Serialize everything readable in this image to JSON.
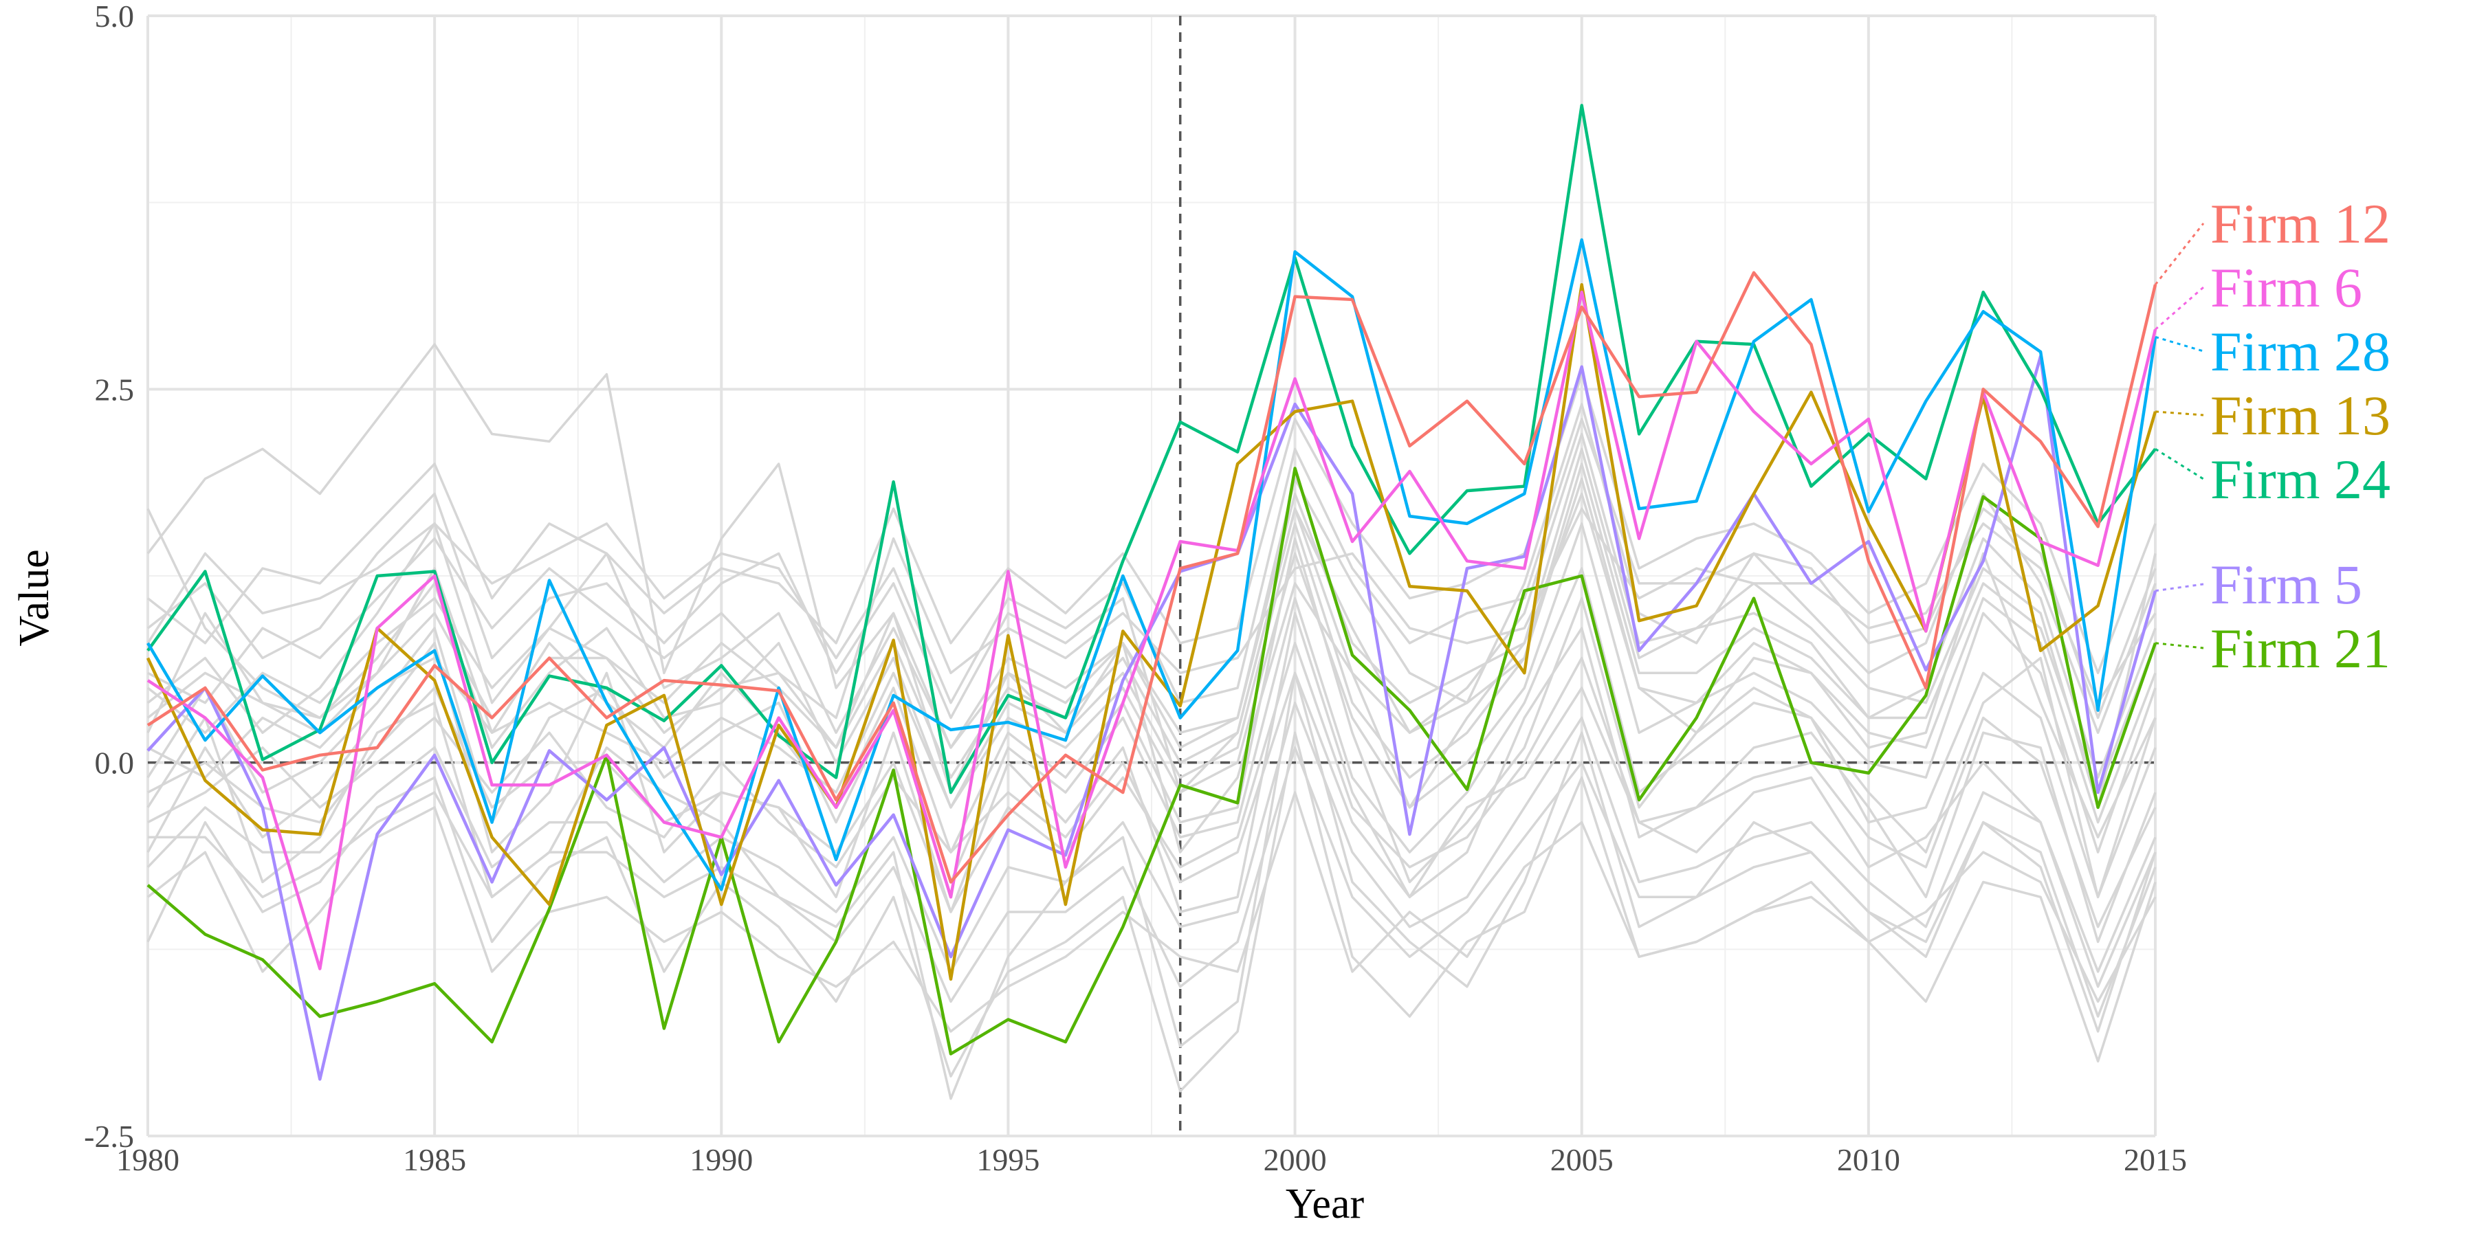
{
  "chart_data": {
    "type": "line",
    "title": "",
    "xlabel": "Year",
    "ylabel": "Value",
    "xlim": [
      1980,
      2015
    ],
    "ylim": [
      -2.5,
      5.0
    ],
    "x_ticks": [
      "1980",
      "1985",
      "1990",
      "1995",
      "2000",
      "2005",
      "2010",
      "2015"
    ],
    "y_ticks": [
      "-2.5",
      "0.0",
      "2.5",
      "5.0"
    ],
    "reference_lines": {
      "vertical_x": 1998,
      "horizontal_y": 0.0,
      "style": "dashed"
    },
    "grid": true,
    "legend": "direct labels on right",
    "years": [
      1980,
      1981,
      1982,
      1983,
      1984,
      1985,
      1986,
      1987,
      1988,
      1989,
      1990,
      1991,
      1992,
      1993,
      1994,
      1995,
      1996,
      1997,
      1998,
      1999,
      2000,
      2001,
      2002,
      2003,
      2004,
      2005,
      2006,
      2007,
      2008,
      2009,
      2010,
      2011,
      2012,
      2013,
      2014,
      2015
    ],
    "highlighted": [
      {
        "name": "Firm 12",
        "color": "#F8766D",
        "values": [
          0.25,
          0.5,
          -0.05,
          0.05,
          0.1,
          0.65,
          0.3,
          0.7,
          0.3,
          0.55,
          0.52,
          0.48,
          -0.25,
          0.4,
          -0.8,
          -0.35,
          0.05,
          -0.2,
          1.3,
          1.4,
          3.12,
          3.1,
          2.12,
          2.42,
          2.0,
          3.05,
          2.45,
          2.48,
          3.28,
          2.8,
          1.35,
          0.5,
          2.5,
          2.15,
          1.58,
          3.2
        ]
      },
      {
        "name": "Firm 6",
        "color": "#F564E3",
        "values": [
          0.55,
          0.3,
          -0.1,
          -1.38,
          0.9,
          1.25,
          -0.15,
          -0.15,
          0.05,
          -0.4,
          -0.5,
          0.3,
          -0.3,
          0.35,
          -0.9,
          1.28,
          -0.7,
          0.4,
          1.48,
          1.42,
          2.57,
          1.48,
          1.95,
          1.35,
          1.3,
          3.15,
          1.5,
          2.82,
          2.35,
          2.0,
          2.3,
          0.88,
          2.48,
          1.48,
          1.32,
          2.9
        ]
      },
      {
        "name": "Firm 28",
        "color": "#00B0F6",
        "values": [
          0.8,
          0.15,
          0.58,
          0.2,
          0.5,
          0.75,
          -0.4,
          1.22,
          0.4,
          -0.25,
          -0.85,
          0.5,
          -0.65,
          0.45,
          0.22,
          0.27,
          0.15,
          1.25,
          0.3,
          0.75,
          3.42,
          3.12,
          1.65,
          1.6,
          1.8,
          3.5,
          1.7,
          1.75,
          2.82,
          3.1,
          1.68,
          2.42,
          3.02,
          2.75,
          0.35,
          2.85
        ]
      },
      {
        "name": "Firm 13",
        "color": "#C49A00",
        "values": [
          0.7,
          -0.12,
          -0.45,
          -0.48,
          0.9,
          0.55,
          -0.5,
          -0.95,
          0.25,
          0.45,
          -0.95,
          0.25,
          -0.3,
          0.82,
          -1.45,
          0.85,
          -0.95,
          0.88,
          0.38,
          2.0,
          2.35,
          2.42,
          1.18,
          1.15,
          0.6,
          3.2,
          0.95,
          1.05,
          1.8,
          2.48,
          1.6,
          0.88,
          2.45,
          0.75,
          1.05,
          2.35
        ]
      },
      {
        "name": "Firm 24",
        "color": "#00BF7D",
        "values": [
          0.75,
          1.28,
          0.02,
          0.22,
          1.25,
          1.28,
          0.0,
          0.58,
          0.5,
          0.28,
          0.65,
          0.18,
          -0.1,
          1.88,
          -0.2,
          0.45,
          0.3,
          1.35,
          2.28,
          2.08,
          3.38,
          2.12,
          1.4,
          1.82,
          1.85,
          4.4,
          2.2,
          2.82,
          2.8,
          1.85,
          2.2,
          1.9,
          3.15,
          2.5,
          1.6,
          2.1
        ]
      },
      {
        "name": "Firm 5",
        "color": "#A58AFF",
        "values": [
          0.08,
          0.5,
          -0.3,
          -2.12,
          -0.48,
          0.05,
          -0.8,
          0.08,
          -0.25,
          0.1,
          -0.75,
          -0.12,
          -0.82,
          -0.35,
          -1.3,
          -0.45,
          -0.62,
          0.55,
          1.28,
          1.4,
          2.4,
          1.8,
          -0.48,
          1.3,
          1.38,
          2.65,
          0.75,
          1.2,
          1.8,
          1.2,
          1.48,
          0.62,
          1.35,
          2.72,
          -0.2,
          1.15
        ]
      },
      {
        "name": "Firm 21",
        "color": "#53B400",
        "values": [
          -0.82,
          -1.15,
          -1.32,
          -1.7,
          -1.6,
          -1.48,
          -1.87,
          -0.98,
          0.05,
          -1.78,
          -0.5,
          -1.87,
          -1.2,
          -0.05,
          -1.95,
          -1.72,
          -1.87,
          -1.1,
          -0.15,
          -0.27,
          1.97,
          0.72,
          0.35,
          -0.18,
          1.15,
          1.25,
          -0.25,
          0.3,
          1.1,
          0.0,
          -0.07,
          0.45,
          1.78,
          1.5,
          -0.3,
          0.8
        ]
      }
    ],
    "background_series": [
      [
        1.7,
        0.9,
        0.5,
        0.3,
        0.6,
        1.3,
        0.2,
        0.8,
        0.4,
        0.1,
        0.6,
        0.2,
        -0.3,
        0.5,
        -0.6,
        0.2,
        -0.1,
        0.4,
        -0.4,
        -0.3,
        1.5,
        0.2,
        -0.8,
        -0.4,
        0.1,
        1.1,
        -0.3,
        0.2,
        0.5,
        0.3,
        -0.2,
        -0.6,
        0.4,
        0.7,
        -0.9,
        0.1
      ],
      [
        1.4,
        1.9,
        2.1,
        1.8,
        2.3,
        2.8,
        2.2,
        2.15,
        2.6,
        0.6,
        1.5,
        2.0,
        0.5,
        1.0,
        -0.2,
        0.6,
        0.2,
        0.8,
        -0.6,
        -0.1,
        1.2,
        0.6,
        -0.3,
        0.3,
        0.8,
        1.8,
        0.5,
        0.2,
        0.7,
        0.6,
        0.1,
        0.2,
        1.4,
        0.4,
        -0.5,
        0.3
      ],
      [
        -0.3,
        0.3,
        -0.8,
        -0.5,
        0.2,
        0.4,
        -0.9,
        -0.6,
        0.1,
        -0.2,
        -0.4,
        -0.9,
        -1.1,
        -0.6,
        -2.25,
        -1.3,
        -0.8,
        -0.5,
        -1.9,
        -1.6,
        0.6,
        -0.8,
        -1.2,
        -1.5,
        -0.8,
        0.2,
        -1.1,
        -0.9,
        -0.4,
        -0.6,
        -1.0,
        -1.3,
        -0.4,
        -0.7,
        -1.8,
        -0.6
      ],
      [
        0.9,
        1.2,
        0.7,
        0.9,
        1.4,
        1.8,
        0.7,
        1.1,
        1.2,
        0.8,
        1.2,
        1.4,
        0.6,
        1.2,
        0.3,
        1.0,
        0.8,
        1.1,
        -0.2,
        0.2,
        1.7,
        0.9,
        0.2,
        0.5,
        1.0,
        2.2,
        0.8,
        0.9,
        1.2,
        0.9,
        0.5,
        0.4,
        1.3,
        1.0,
        -0.3,
        1.4
      ],
      [
        -1.2,
        -0.4,
        -1.0,
        -0.8,
        -0.3,
        -0.1,
        -1.2,
        -0.7,
        -0.5,
        -1.4,
        -0.8,
        -1.1,
        -1.6,
        -0.9,
        -2.1,
        -1.4,
        -1.2,
        -0.9,
        -2.2,
        -1.8,
        0.2,
        -1.3,
        -1.7,
        -1.2,
        -1.0,
        -0.1,
        -1.3,
        -1.2,
        -1.0,
        -0.9,
        -1.2,
        -1.6,
        -0.8,
        -0.9,
        -2.0,
        -0.8
      ],
      [
        0.4,
        0.7,
        0.2,
        0.5,
        1.0,
        1.6,
        0.4,
        0.9,
        1.4,
        0.5,
        0.7,
        1.0,
        0.2,
        0.9,
        0.1,
        0.7,
        0.5,
        0.8,
        0.2,
        0.3,
        1.9,
        1.2,
        0.6,
        0.4,
        1.2,
        2.4,
        1.0,
        0.8,
        1.4,
        1.0,
        0.6,
        0.8,
        1.8,
        1.2,
        0.2,
        1.2
      ],
      [
        -0.6,
        0.1,
        -0.5,
        -0.2,
        0.3,
        0.8,
        -0.6,
        -0.2,
        0.6,
        -0.6,
        -0.2,
        -0.3,
        -0.9,
        0.2,
        -1.0,
        0.0,
        -0.4,
        0.1,
        -1.0,
        -0.9,
        1.0,
        -0.2,
        -0.9,
        -0.6,
        0.3,
        0.9,
        -0.5,
        -0.3,
        0.1,
        0.2,
        -0.3,
        -0.9,
        0.2,
        0.1,
        -1.2,
        -0.2
      ],
      [
        0.2,
        1.0,
        0.4,
        0.3,
        0.7,
        1.2,
        0.1,
        0.6,
        0.9,
        0.3,
        0.4,
        0.8,
        0.0,
        0.7,
        -0.3,
        0.4,
        0.2,
        0.6,
        -0.1,
        0.1,
        1.6,
        0.4,
        -0.1,
        0.2,
        0.7,
        1.9,
        0.5,
        0.4,
        0.8,
        0.6,
        0.2,
        0.1,
        1.1,
        0.8,
        -0.4,
        0.6
      ],
      [
        -0.9,
        -0.6,
        -1.4,
        -1.0,
        -0.5,
        -0.3,
        -1.4,
        -1.0,
        -0.9,
        -1.2,
        -1.0,
        -1.3,
        -1.5,
        -1.2,
        -1.8,
        -1.5,
        -1.3,
        -1.0,
        -1.3,
        -1.4,
        -0.2,
        -1.4,
        -1.0,
        -1.3,
        -0.7,
        -0.4,
        -1.3,
        -1.2,
        -1.0,
        -0.8,
        -1.2,
        -1.0,
        -0.6,
        -0.8,
        -1.6,
        -0.9
      ],
      [
        0.6,
        0.4,
        0.9,
        0.7,
        1.1,
        1.5,
        0.9,
        1.3,
        1.0,
        0.7,
        1.0,
        0.6,
        0.3,
        1.5,
        0.6,
        0.9,
        0.7,
        1.0,
        0.6,
        0.7,
        1.3,
        1.4,
        0.9,
        0.8,
        0.9,
        1.7,
        1.1,
        1.3,
        1.2,
        1.2,
        0.9,
        1.0,
        1.6,
        1.3,
        0.4,
        1.0
      ],
      [
        -0.4,
        -0.2,
        0.1,
        -0.3,
        0.0,
        0.3,
        -0.2,
        0.2,
        -0.3,
        -0.5,
        0.0,
        -0.4,
        -0.7,
        -0.1,
        -0.6,
        -0.2,
        -0.5,
        0.0,
        -0.8,
        -0.6,
        0.6,
        -0.4,
        -0.9,
        -0.3,
        -0.1,
        0.5,
        -0.4,
        -0.6,
        -0.2,
        -0.1,
        -0.7,
        -0.5,
        0.0,
        -0.4,
        -1.4,
        -0.5
      ],
      [
        1.1,
        0.8,
        1.3,
        1.2,
        1.6,
        2.0,
        1.1,
        1.6,
        1.4,
        1.0,
        1.3,
        1.2,
        0.8,
        1.7,
        0.8,
        1.3,
        1.0,
        1.4,
        0.8,
        0.9,
        2.3,
        1.6,
        1.1,
        1.2,
        1.4,
        2.6,
        1.3,
        1.5,
        1.6,
        1.4,
        1.0,
        1.2,
        2.0,
        1.6,
        0.6,
        1.6
      ],
      [
        -0.1,
        0.5,
        -0.2,
        0.0,
        0.4,
        0.9,
        -0.4,
        0.3,
        0.5,
        -0.1,
        0.2,
        0.4,
        -0.4,
        0.4,
        -0.8,
        0.1,
        -0.2,
        0.3,
        -0.5,
        -0.4,
        1.1,
        -0.1,
        -0.6,
        -0.2,
        0.4,
        1.3,
        -0.2,
        0.1,
        0.4,
        0.3,
        -0.4,
        -0.3,
        0.6,
        0.3,
        -0.9,
        0.3
      ],
      [
        0.5,
        0.2,
        0.6,
        0.4,
        0.8,
        1.1,
        0.5,
        0.9,
        0.7,
        0.4,
        0.8,
        0.5,
        0.1,
        1.0,
        0.1,
        0.6,
        0.4,
        0.8,
        0.1,
        0.3,
        1.8,
        0.8,
        0.4,
        0.6,
        0.8,
        2.1,
        0.7,
        0.9,
        1.0,
        0.8,
        0.3,
        0.5,
        1.5,
        1.1,
        -0.1,
        0.9
      ],
      [
        -0.7,
        -0.3,
        -0.6,
        -0.6,
        -0.2,
        0.1,
        -0.7,
        -0.4,
        -0.4,
        -0.8,
        -0.5,
        -0.7,
        -1.0,
        -0.5,
        -1.4,
        -0.7,
        -0.8,
        -0.4,
        -1.1,
        -1.0,
        0.4,
        -0.6,
        -1.1,
        -0.9,
        -0.3,
        0.3,
        -0.8,
        -0.7,
        -0.5,
        -0.4,
        -0.8,
        -1.1,
        -0.2,
        -0.4,
        -1.5,
        -0.6
      ],
      [
        0.1,
        -0.1,
        0.3,
        0.1,
        0.5,
        0.7,
        0.2,
        0.4,
        0.2,
        0.0,
        0.3,
        0.1,
        -0.2,
        0.6,
        -0.3,
        0.3,
        0.1,
        0.5,
        -0.2,
        0.0,
        1.4,
        0.3,
        -0.3,
        0.0,
        0.5,
        1.6,
        0.2,
        0.4,
        0.6,
        0.4,
        0.0,
        -0.1,
        1.0,
        0.6,
        -0.6,
        0.5
      ],
      [
        -0.2,
        0.0,
        -0.3,
        -0.4,
        0.1,
        0.5,
        -0.3,
        0.0,
        0.0,
        -0.4,
        -0.2,
        -0.3,
        -0.6,
        0.0,
        -1.0,
        -0.3,
        -0.6,
        -0.1,
        -0.7,
        -0.5,
        0.8,
        -0.3,
        -0.7,
        -0.5,
        0.0,
        0.7,
        -0.4,
        -0.3,
        -0.1,
        0.0,
        -0.5,
        -0.7,
        0.3,
        0.0,
        -1.1,
        -0.3
      ],
      [
        0.3,
        0.6,
        0.4,
        0.2,
        0.6,
        1.0,
        0.3,
        0.7,
        0.7,
        0.2,
        0.5,
        0.6,
        0.1,
        0.8,
        -0.1,
        0.5,
        0.3,
        0.7,
        0.0,
        0.2,
        1.7,
        0.6,
        0.2,
        0.4,
        0.7,
        2.0,
        0.6,
        0.6,
        0.9,
        0.7,
        0.3,
        0.3,
        1.2,
        0.9,
        -0.2,
        0.8
      ],
      [
        -0.5,
        -0.5,
        -0.9,
        -0.7,
        -0.4,
        -0.2,
        -0.9,
        -0.6,
        -0.6,
        -0.9,
        -0.7,
        -0.9,
        -1.2,
        -0.7,
        -1.6,
        -1.0,
        -1.0,
        -0.7,
        -1.5,
        -1.2,
        0.1,
        -0.9,
        -1.3,
        -1.0,
        -0.5,
        0.0,
        -0.9,
        -0.9,
        -0.7,
        -0.6,
        -1.0,
        -1.2,
        -0.4,
        -0.6,
        -1.7,
        -0.7
      ],
      [
        0.8,
        1.4,
        1.0,
        1.1,
        1.3,
        1.6,
        1.2,
        1.4,
        1.6,
        1.1,
        1.4,
        1.3,
        0.7,
        1.3,
        0.4,
        1.1,
        0.9,
        1.2,
        0.4,
        0.5,
        2.1,
        1.3,
        0.8,
        1.0,
        1.1,
        2.3,
        1.2,
        1.2,
        1.4,
        1.3,
        0.8,
        0.9,
        1.7,
        1.4,
        0.3,
        1.3
      ]
    ],
    "labels": [
      "Firm 12",
      "Firm 6",
      "Firm 28",
      "Firm 13",
      "Firm 24",
      "Firm 5",
      "Firm 21"
    ]
  }
}
